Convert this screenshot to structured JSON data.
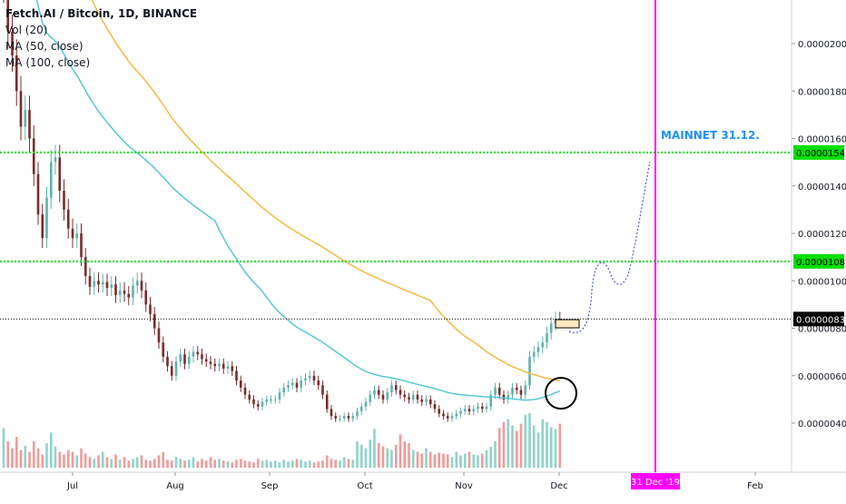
{
  "chart_data": {
    "type": "candlestick",
    "symbol_title": "Fetch.AI / Bitcoin, 1D, BINANCE",
    "indicators": [
      "Vol (20)",
      "MA (50, close)",
      "MA (100, close)"
    ],
    "x_tick_labels": [
      "Jul",
      "Aug",
      "Sep",
      "Oct",
      "Nov",
      "Dec",
      "Feb"
    ],
    "x_cursor_label": "31 Dec '19",
    "y_tick_labels": [
      "0.00000400",
      "0.00000600",
      "0.00000800",
      "0.00001000",
      "0.00001200",
      "0.00001400",
      "0.00001600",
      "0.00001800",
      "0.00002000"
    ],
    "ylim": [
      2e-06,
      2.3e-05
    ],
    "horizontal_levels": [
      {
        "value": 1.541e-05,
        "label": "0.00001541",
        "color": "#00e000"
      },
      {
        "value": 1.082e-05,
        "label": "0.00001082",
        "color": "#00e000"
      },
      {
        "value": 8.39e-06,
        "label": "0.00000839",
        "color": "#000000"
      }
    ],
    "annotation": "MAINNET 31.12.",
    "colors": {
      "up": "#5fb3ac",
      "down": "#7a2b2b",
      "ma50": "#56c7d6",
      "ma100": "#f5b942",
      "vol_up": "#8fd3c8",
      "vol_down": "#f29a9a",
      "vertical_line": "#ff00ff",
      "projection": "#4a5bd4"
    },
    "close_series": [
      2.25e-05,
      2.05e-05,
      1.95e-05,
      1.8e-05,
      1.65e-05,
      1.72e-05,
      1.6e-05,
      1.45e-05,
      1.28e-05,
      1.18e-05,
      1.35e-05,
      1.5e-05,
      1.52e-05,
      1.38e-05,
      1.3e-05,
      1.22e-05,
      1.18e-05,
      1.2e-05,
      1.1e-05,
      1.02e-05,
      9.75e-06,
      1e-05,
      9.85e-06,
      9.95e-06,
      9.7e-06,
      9.85e-06,
      9.4e-06,
      9.6e-06,
      9.45e-06,
      9.3e-06,
      9.8e-06,
      1e-05,
      9.6e-06,
      9e-06,
      8.6e-06,
      8e-06,
      7.4e-06,
      6.8e-06,
      6.4e-06,
      6e-06,
      6.6e-06,
      6.9e-06,
      6.5e-06,
      6.8e-06,
      7e-06,
      6.9e-06,
      6.7e-06,
      6.6e-06,
      6.5e-06,
      6.4e-06,
      6.5e-06,
      6.3e-06,
      6.4e-06,
      6.2e-06,
      5.8e-06,
      5.5e-06,
      5.2e-06,
      5e-06,
      4.8e-06,
      4.7e-06,
      4.9e-06,
      5e-06,
      5e-06,
      5e-06,
      5.3e-06,
      5.5e-06,
      5.6e-06,
      5.7e-06,
      5.5e-06,
      5.8e-06,
      5.9e-06,
      6e-06,
      5.8e-06,
      5.6e-06,
      5.2e-06,
      4.6e-06,
      4.3e-06,
      4.2e-06,
      4.2e-06,
      4.3e-06,
      4.2e-06,
      4.3e-06,
      4.5e-06,
      4.7e-06,
      4.9e-06,
      5.2e-06,
      5.4e-06,
      5.2e-06,
      5e-06,
      5.3e-06,
      5.6e-06,
      5.4e-06,
      5.2e-06,
      5.1e-06,
      5e-06,
      5.2e-06,
      5e-06,
      4.9e-06,
      5e-06,
      4.8e-06,
      4.6e-06,
      4.4e-06,
      4.3e-06,
      4.2e-06,
      4.3e-06,
      4.4e-06,
      4.5e-06,
      4.6e-06,
      4.5e-06,
      4.6e-06,
      4.7e-06,
      4.6e-06,
      4.7e-06,
      5.2e-06,
      5.5e-06,
      5.2e-06,
      5e-06,
      5.2e-06,
      5.5e-06,
      5.4e-06,
      5.2e-06,
      5.6e-06,
      6.8e-06,
      7e-06,
      7.2e-06,
      7.4e-06,
      7.8e-06,
      8.2e-06,
      8.4e-06,
      8.3e-06
    ],
    "volume_series": [
      45,
      30,
      22,
      35,
      20,
      25,
      18,
      30,
      22,
      15,
      28,
      40,
      24,
      18,
      15,
      20,
      18,
      14,
      22,
      16,
      12,
      10,
      14,
      18,
      12,
      10,
      15,
      9,
      12,
      8,
      10,
      12,
      14,
      9,
      8,
      10,
      14,
      18,
      9,
      8,
      12,
      10,
      8,
      9,
      12,
      7,
      10,
      8,
      12,
      9,
      10,
      8,
      7,
      6,
      9,
      10,
      8,
      7,
      6,
      10,
      8,
      9,
      7,
      8,
      6,
      9,
      7,
      8,
      10,
      9,
      7,
      8,
      6,
      7,
      8,
      14,
      10,
      9,
      8,
      12,
      10,
      9,
      30,
      26,
      22,
      32,
      44,
      28,
      24,
      22,
      20,
      26,
      38,
      30,
      28,
      20,
      18,
      16,
      22,
      18,
      15,
      17,
      16,
      15,
      12,
      18,
      14,
      16,
      18,
      15,
      14,
      16,
      20,
      24,
      30,
      45,
      52,
      55,
      48,
      42,
      50,
      60,
      62,
      48,
      40,
      55,
      52,
      46,
      44,
      50
    ]
  }
}
